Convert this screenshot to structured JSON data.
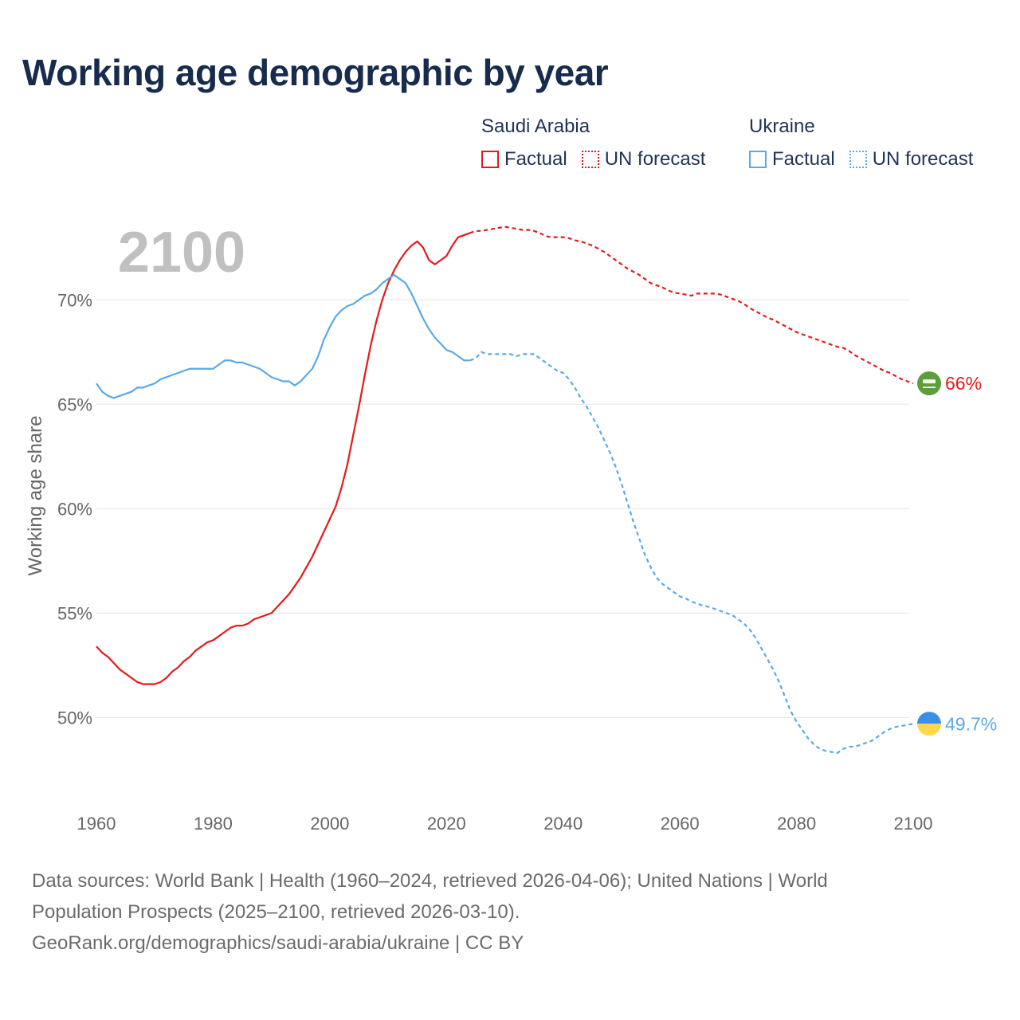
{
  "title": "Working age demographic by year",
  "legend": {
    "groups": [
      {
        "name": "Saudi Arabia",
        "color": "#e41a1c",
        "factual_label": "Factual",
        "forecast_label": "UN forecast"
      },
      {
        "name": "Ukraine",
        "color": "#5aa9e6",
        "factual_label": "Factual",
        "forecast_label": "UN forecast"
      }
    ]
  },
  "chart_data": {
    "type": "line",
    "title": "Working age demographic by year",
    "current_year_label": "2100",
    "xlabel": "",
    "ylabel": "Working age share",
    "xlim": [
      1960,
      2103
    ],
    "ylim": [
      46.2,
      75.2
    ],
    "x_ticks": [
      1960,
      1980,
      2000,
      2020,
      2040,
      2060,
      2080,
      2100
    ],
    "y_ticks": [
      50,
      55,
      60,
      65,
      70
    ],
    "y_tick_labels": [
      "50%",
      "55%",
      "60%",
      "65%",
      "70%"
    ],
    "x_tick_labels": [
      "1960",
      "1980",
      "2000",
      "2020",
      "2040",
      "2060",
      "2080",
      "2100"
    ],
    "grid": true,
    "forecast_start_year": 2025,
    "series": [
      {
        "name": "Saudi Arabia",
        "color": "#e41a1c",
        "end_label": "66%",
        "flag": "saudi-arabia",
        "points": [
          [
            1960,
            53.4
          ],
          [
            1961,
            53.1
          ],
          [
            1962,
            52.9
          ],
          [
            1963,
            52.6
          ],
          [
            1964,
            52.3
          ],
          [
            1965,
            52.1
          ],
          [
            1966,
            51.9
          ],
          [
            1967,
            51.7
          ],
          [
            1968,
            51.6
          ],
          [
            1969,
            51.6
          ],
          [
            1970,
            51.6
          ],
          [
            1971,
            51.7
          ],
          [
            1972,
            51.9
          ],
          [
            1973,
            52.2
          ],
          [
            1974,
            52.4
          ],
          [
            1975,
            52.7
          ],
          [
            1976,
            52.9
          ],
          [
            1977,
            53.2
          ],
          [
            1978,
            53.4
          ],
          [
            1979,
            53.6
          ],
          [
            1980,
            53.7
          ],
          [
            1981,
            53.9
          ],
          [
            1982,
            54.1
          ],
          [
            1983,
            54.3
          ],
          [
            1984,
            54.4
          ],
          [
            1985,
            54.4
          ],
          [
            1986,
            54.5
          ],
          [
            1987,
            54.7
          ],
          [
            1988,
            54.8
          ],
          [
            1989,
            54.9
          ],
          [
            1990,
            55.0
          ],
          [
            1991,
            55.3
          ],
          [
            1992,
            55.6
          ],
          [
            1993,
            55.9
          ],
          [
            1994,
            56.3
          ],
          [
            1995,
            56.7
          ],
          [
            1996,
            57.2
          ],
          [
            1997,
            57.7
          ],
          [
            1998,
            58.3
          ],
          [
            1999,
            58.9
          ],
          [
            2000,
            59.5
          ],
          [
            2001,
            60.1
          ],
          [
            2002,
            61.0
          ],
          [
            2003,
            62.1
          ],
          [
            2004,
            63.5
          ],
          [
            2005,
            64.9
          ],
          [
            2006,
            66.4
          ],
          [
            2007,
            67.8
          ],
          [
            2008,
            69.0
          ],
          [
            2009,
            70.0
          ],
          [
            2010,
            70.8
          ],
          [
            2011,
            71.4
          ],
          [
            2012,
            71.9
          ],
          [
            2013,
            72.3
          ],
          [
            2014,
            72.6
          ],
          [
            2015,
            72.8
          ],
          [
            2016,
            72.5
          ],
          [
            2017,
            71.9
          ],
          [
            2018,
            71.7
          ],
          [
            2019,
            71.9
          ],
          [
            2020,
            72.1
          ],
          [
            2021,
            72.6
          ],
          [
            2022,
            73.0
          ],
          [
            2023,
            73.1
          ],
          [
            2024,
            73.2
          ],
          [
            2025,
            73.3
          ],
          [
            2026,
            73.3
          ],
          [
            2027,
            73.35
          ],
          [
            2028,
            73.4
          ],
          [
            2029,
            73.45
          ],
          [
            2030,
            73.5
          ],
          [
            2031,
            73.45
          ],
          [
            2032,
            73.4
          ],
          [
            2033,
            73.35
          ],
          [
            2034,
            73.35
          ],
          [
            2035,
            73.3
          ],
          [
            2036,
            73.2
          ],
          [
            2037,
            73.05
          ],
          [
            2038,
            73.0
          ],
          [
            2039,
            73.0
          ],
          [
            2040,
            73.0
          ],
          [
            2041,
            72.95
          ],
          [
            2042,
            72.85
          ],
          [
            2043,
            72.8
          ],
          [
            2044,
            72.7
          ],
          [
            2045,
            72.6
          ],
          [
            2046,
            72.45
          ],
          [
            2047,
            72.3
          ],
          [
            2048,
            72.1
          ],
          [
            2049,
            71.9
          ],
          [
            2050,
            71.7
          ],
          [
            2051,
            71.5
          ],
          [
            2052,
            71.35
          ],
          [
            2053,
            71.2
          ],
          [
            2054,
            71.0
          ],
          [
            2055,
            70.8
          ],
          [
            2056,
            70.7
          ],
          [
            2057,
            70.6
          ],
          [
            2058,
            70.45
          ],
          [
            2059,
            70.35
          ],
          [
            2060,
            70.3
          ],
          [
            2061,
            70.25
          ],
          [
            2062,
            70.2
          ],
          [
            2063,
            70.3
          ],
          [
            2064,
            70.3
          ],
          [
            2065,
            70.3
          ],
          [
            2066,
            70.3
          ],
          [
            2067,
            70.25
          ],
          [
            2068,
            70.15
          ],
          [
            2069,
            70.05
          ],
          [
            2070,
            69.95
          ],
          [
            2071,
            69.8
          ],
          [
            2072,
            69.6
          ],
          [
            2073,
            69.45
          ],
          [
            2074,
            69.3
          ],
          [
            2075,
            69.15
          ],
          [
            2076,
            69.05
          ],
          [
            2077,
            68.9
          ],
          [
            2078,
            68.75
          ],
          [
            2079,
            68.6
          ],
          [
            2080,
            68.45
          ],
          [
            2081,
            68.35
          ],
          [
            2082,
            68.25
          ],
          [
            2083,
            68.15
          ],
          [
            2084,
            68.05
          ],
          [
            2085,
            67.95
          ],
          [
            2086,
            67.85
          ],
          [
            2087,
            67.75
          ],
          [
            2088,
            67.7
          ],
          [
            2089,
            67.55
          ],
          [
            2090,
            67.35
          ],
          [
            2091,
            67.2
          ],
          [
            2092,
            67.05
          ],
          [
            2093,
            66.9
          ],
          [
            2094,
            66.75
          ],
          [
            2095,
            66.6
          ],
          [
            2096,
            66.5
          ],
          [
            2097,
            66.35
          ],
          [
            2098,
            66.2
          ],
          [
            2099,
            66.1
          ],
          [
            2100,
            66.0
          ]
        ]
      },
      {
        "name": "Ukraine",
        "color": "#5aa9e6",
        "end_label": "49.7%",
        "flag": "ukraine",
        "points": [
          [
            1960,
            66.0
          ],
          [
            1961,
            65.6
          ],
          [
            1962,
            65.4
          ],
          [
            1963,
            65.3
          ],
          [
            1964,
            65.4
          ],
          [
            1965,
            65.5
          ],
          [
            1966,
            65.6
          ],
          [
            1967,
            65.8
          ],
          [
            1968,
            65.8
          ],
          [
            1969,
            65.9
          ],
          [
            1970,
            66.0
          ],
          [
            1971,
            66.2
          ],
          [
            1972,
            66.3
          ],
          [
            1973,
            66.4
          ],
          [
            1974,
            66.5
          ],
          [
            1975,
            66.6
          ],
          [
            1976,
            66.7
          ],
          [
            1977,
            66.7
          ],
          [
            1978,
            66.7
          ],
          [
            1979,
            66.7
          ],
          [
            1980,
            66.7
          ],
          [
            1981,
            66.9
          ],
          [
            1982,
            67.1
          ],
          [
            1983,
            67.1
          ],
          [
            1984,
            67.0
          ],
          [
            1985,
            67.0
          ],
          [
            1986,
            66.9
          ],
          [
            1987,
            66.8
          ],
          [
            1988,
            66.7
          ],
          [
            1989,
            66.5
          ],
          [
            1990,
            66.3
          ],
          [
            1991,
            66.2
          ],
          [
            1992,
            66.1
          ],
          [
            1993,
            66.1
          ],
          [
            1994,
            65.9
          ],
          [
            1995,
            66.1
          ],
          [
            1996,
            66.4
          ],
          [
            1997,
            66.7
          ],
          [
            1998,
            67.3
          ],
          [
            1999,
            68.1
          ],
          [
            2000,
            68.7
          ],
          [
            2001,
            69.2
          ],
          [
            2002,
            69.5
          ],
          [
            2003,
            69.7
          ],
          [
            2004,
            69.8
          ],
          [
            2005,
            70.0
          ],
          [
            2006,
            70.2
          ],
          [
            2007,
            70.3
          ],
          [
            2008,
            70.5
          ],
          [
            2009,
            70.8
          ],
          [
            2010,
            71.0
          ],
          [
            2011,
            71.2
          ],
          [
            2012,
            71.0
          ],
          [
            2013,
            70.8
          ],
          [
            2014,
            70.3
          ],
          [
            2015,
            69.7
          ],
          [
            2016,
            69.1
          ],
          [
            2017,
            68.6
          ],
          [
            2018,
            68.2
          ],
          [
            2019,
            67.9
          ],
          [
            2020,
            67.6
          ],
          [
            2021,
            67.5
          ],
          [
            2022,
            67.3
          ],
          [
            2023,
            67.1
          ],
          [
            2024,
            67.1
          ],
          [
            2025,
            67.2
          ],
          [
            2026,
            67.5
          ],
          [
            2027,
            67.4
          ],
          [
            2028,
            67.4
          ],
          [
            2029,
            67.4
          ],
          [
            2030,
            67.4
          ],
          [
            2031,
            67.4
          ],
          [
            2032,
            67.3
          ],
          [
            2033,
            67.4
          ],
          [
            2034,
            67.4
          ],
          [
            2035,
            67.4
          ],
          [
            2036,
            67.2
          ],
          [
            2037,
            67.0
          ],
          [
            2038,
            66.8
          ],
          [
            2039,
            66.6
          ],
          [
            2040,
            66.5
          ],
          [
            2041,
            66.2
          ],
          [
            2042,
            65.8
          ],
          [
            2043,
            65.3
          ],
          [
            2044,
            64.9
          ],
          [
            2045,
            64.4
          ],
          [
            2046,
            63.9
          ],
          [
            2047,
            63.3
          ],
          [
            2048,
            62.7
          ],
          [
            2049,
            62.0
          ],
          [
            2050,
            61.2
          ],
          [
            2051,
            60.3
          ],
          [
            2052,
            59.4
          ],
          [
            2053,
            58.6
          ],
          [
            2054,
            57.8
          ],
          [
            2055,
            57.2
          ],
          [
            2056,
            56.7
          ],
          [
            2057,
            56.4
          ],
          [
            2058,
            56.2
          ],
          [
            2059,
            56.0
          ],
          [
            2060,
            55.8
          ],
          [
            2061,
            55.7
          ],
          [
            2062,
            55.55
          ],
          [
            2063,
            55.45
          ],
          [
            2064,
            55.35
          ],
          [
            2065,
            55.3
          ],
          [
            2066,
            55.2
          ],
          [
            2067,
            55.1
          ],
          [
            2068,
            55.0
          ],
          [
            2069,
            54.9
          ],
          [
            2070,
            54.7
          ],
          [
            2071,
            54.5
          ],
          [
            2072,
            54.2
          ],
          [
            2073,
            53.8
          ],
          [
            2074,
            53.3
          ],
          [
            2075,
            52.8
          ],
          [
            2076,
            52.3
          ],
          [
            2077,
            51.7
          ],
          [
            2078,
            51.0
          ],
          [
            2079,
            50.3
          ],
          [
            2080,
            49.8
          ],
          [
            2081,
            49.4
          ],
          [
            2082,
            49.0
          ],
          [
            2083,
            48.7
          ],
          [
            2084,
            48.5
          ],
          [
            2085,
            48.4
          ],
          [
            2086,
            48.35
          ],
          [
            2087,
            48.3
          ],
          [
            2088,
            48.5
          ],
          [
            2089,
            48.6
          ],
          [
            2090,
            48.6
          ],
          [
            2091,
            48.7
          ],
          [
            2092,
            48.8
          ],
          [
            2093,
            48.9
          ],
          [
            2094,
            49.1
          ],
          [
            2095,
            49.3
          ],
          [
            2096,
            49.45
          ],
          [
            2097,
            49.55
          ],
          [
            2098,
            49.6
          ],
          [
            2099,
            49.65
          ],
          [
            2100,
            49.7
          ]
        ]
      }
    ]
  },
  "source": {
    "line1": "Data sources: World Bank | Health (1960–2024, retrieved 2026-04-06); United Nations | World",
    "line2": "Population Prospects (2025–2100, retrieved 2026-03-10).",
    "line3": "GeoRank.org/demographics/saudi-arabia/ukraine | CC BY"
  }
}
